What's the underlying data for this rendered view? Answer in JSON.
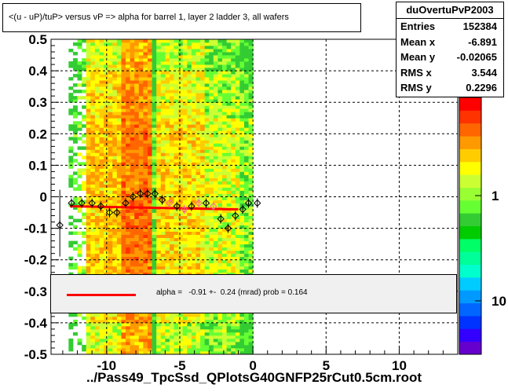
{
  "title": "<(u - uP)/tuP> versus   vP => alpha for barrel 1, layer 2 ladder 3, all wafers",
  "stats": {
    "name": "duOvertuPvP2003",
    "rows": [
      {
        "key": "Entries",
        "value": "152384"
      },
      {
        "key": "Mean x",
        "value": "-6.891"
      },
      {
        "key": "Mean y",
        "value": "-0.02065"
      },
      {
        "key": "RMS x",
        "value": "3.544"
      },
      {
        "key": "RMS y",
        "value": "0.2296"
      }
    ]
  },
  "fit_legend": "alpha =   -0.91 +-  0.24 (mrad) prob = 0.164",
  "footer": "../Pass49_TpcSsd_QPlotsG40GNFP25rCut0.5cm.root",
  "colors": {
    "fit_line": "#ff0000",
    "frame": "#000000",
    "background": "#ffffff",
    "profile_open": "#000000",
    "profile_pink": "#ff6699"
  },
  "chart_data": {
    "type": "heatmap",
    "xlim": [
      -13.8,
      14.0
    ],
    "ylim": [
      -0.5,
      0.5
    ],
    "x_ticks": [
      -10,
      -5,
      0,
      5,
      10
    ],
    "y_ticks": [
      -0.5,
      -0.4,
      -0.3,
      -0.2,
      -0.1,
      0,
      0.1,
      0.2,
      0.3,
      0.4,
      0.5
    ],
    "colorbar_ticks": [
      "10",
      "1"
    ],
    "grid": true,
    "fit": {
      "x": [
        -12.5,
        -1.0
      ],
      "y": [
        -0.03,
        -0.04
      ]
    },
    "profile": [
      {
        "x": -13.2,
        "y": -0.09
      },
      {
        "x": -12.4,
        "y": -0.02
      },
      {
        "x": -11.7,
        "y": -0.02
      },
      {
        "x": -11.0,
        "y": -0.02
      },
      {
        "x": -10.4,
        "y": -0.03
      },
      {
        "x": -9.8,
        "y": -0.05
      },
      {
        "x": -9.3,
        "y": -0.05
      },
      {
        "x": -8.7,
        "y": -0.02
      },
      {
        "x": -8.2,
        "y": 0.0
      },
      {
        "x": -7.7,
        "y": 0.01
      },
      {
        "x": -7.2,
        "y": 0.01
      },
      {
        "x": -6.7,
        "y": 0.01
      },
      {
        "x": -6.2,
        "y": -0.01
      },
      {
        "x": -5.7,
        "y": -0.02
      },
      {
        "x": -5.2,
        "y": -0.03
      },
      {
        "x": -4.7,
        "y": -0.04
      },
      {
        "x": -4.2,
        "y": -0.03
      },
      {
        "x": -3.7,
        "y": -0.02
      },
      {
        "x": -3.2,
        "y": -0.02
      },
      {
        "x": -2.7,
        "y": -0.03
      },
      {
        "x": -2.2,
        "y": -0.07
      },
      {
        "x": -1.7,
        "y": -0.1
      },
      {
        "x": -1.2,
        "y": -0.06
      },
      {
        "x": -0.7,
        "y": -0.04
      },
      {
        "x": -0.3,
        "y": -0.02
      },
      {
        "x": 0.3,
        "y": -0.02
      }
    ]
  }
}
